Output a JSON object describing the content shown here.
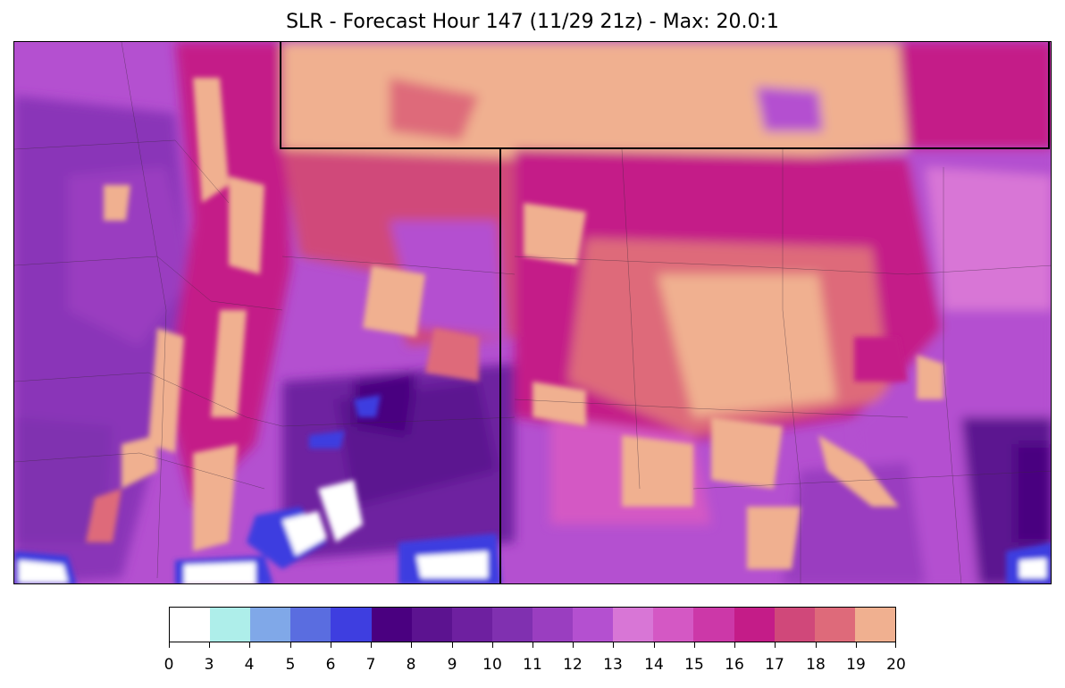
{
  "title": "SLR - Forecast Hour 147 (11/29 21z) - Max: 20.0:1",
  "colorbar": {
    "ticks": [
      "0",
      "3",
      "4",
      "5",
      "6",
      "7",
      "8",
      "9",
      "10",
      "11",
      "12",
      "13",
      "14",
      "15",
      "16",
      "17",
      "18",
      "19",
      "20"
    ],
    "colors": [
      "#ffffff",
      "#aeeeea",
      "#80a8e8",
      "#5a6de0",
      "#3e3ee0",
      "#4a0080",
      "#5c1390",
      "#6e20a0",
      "#8030b0",
      "#9a3ec0",
      "#b450d0",
      "#d876d6",
      "#d458c4",
      "#cc38a8",
      "#c41c88",
      "#d0487a",
      "#de6a7a",
      "#f0b090"
    ]
  },
  "legend_colors": {
    "low_white": "#ffffff",
    "cyan": "#aeeeea",
    "deep_purple": "#4a0080",
    "violet": "#b450d0",
    "magenta": "#c41c88",
    "peach": "#f0b090"
  }
}
